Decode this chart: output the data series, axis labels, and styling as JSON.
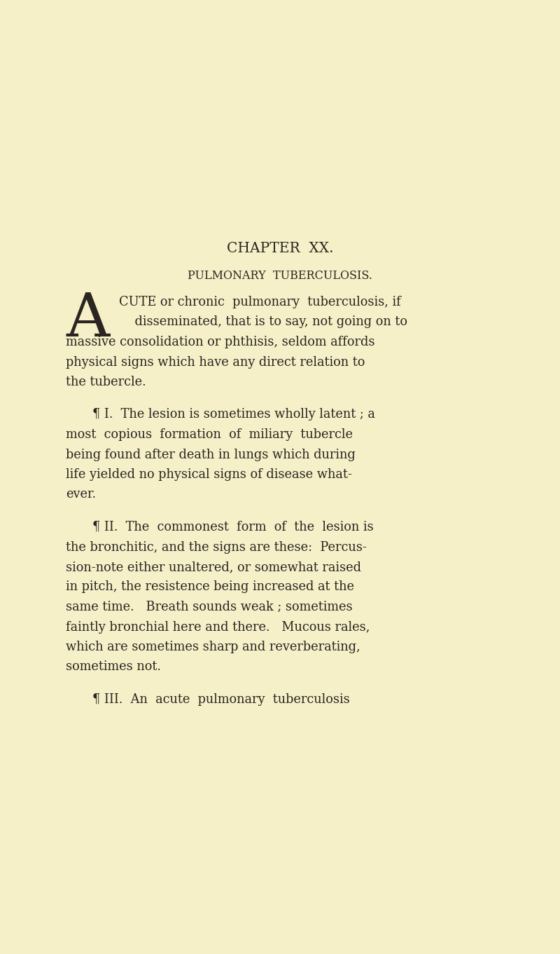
{
  "background_color": "#f5f0c8",
  "text_color": "#2a2520",
  "chapter_title": "CHAPTER  XX.",
  "section_title": "PULMONARY  TUBERCULOSIS.",
  "chapter_title_fontsize": 14.5,
  "section_title_fontsize": 11.5,
  "body_fontsize": 12.8,
  "drop_cap_letter": "A",
  "drop_cap_fontsize": 62,
  "para0_line1": "CUTE or chronic  pulmonary  tuberculosis, if",
  "para0_line2": "    disseminated, that is to say, not going on to",
  "para0_line3": "massive consolidation or phthisis, seldom affords",
  "para0_line4": "physical signs which have any direct relation to",
  "para0_line5": "the tubercle.",
  "para1_line1": "¶ I.  The lesion is sometimes wholly latent ; a",
  "para1_line2": "most  copious  formation  of  miliary  tubercle",
  "para1_line3": "being found after death in lungs which during",
  "para1_line4": "life yielded no physical signs of disease what-",
  "para1_line5": "ever.",
  "para2_line1": "¶ II.  The  commonest  form  of  the  lesion is",
  "para2_line2": "the bronchitic, and the signs are these:  Percus-",
  "para2_line3": "sion-note either unaltered, or somewhat raised",
  "para2_line4": "in pitch, the resistence being increased at the",
  "para2_line5": "same time.   Breath sounds weak ; sometimes",
  "para2_line6": "faintly bronchial here and there.   Mucous rales,",
  "para2_line7": "which are sometimes sharp and reverberating,",
  "para2_line8": "sometimes not.",
  "para3_line1": "¶ III.  An  acute  pulmonary  tuberculosis"
}
